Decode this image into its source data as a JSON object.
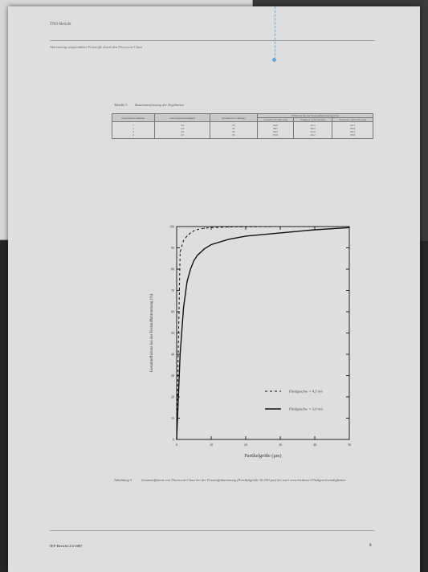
{
  "document": {
    "header_text": "TNO-Bericht",
    "header_subtitle": "Abtrennung ausgewählter Feststoffe durch den Fluorocut-Claus",
    "footer_left": "IFF-Bericht 2/2-2007",
    "page_number": "9"
  },
  "table": {
    "caption_label": "Tabelle 5",
    "caption_title": "Zusammenfassung der Ergebnisse",
    "headers": {
      "col1": "Experiment-nummer",
      "col2": "Glied-geschwindigkeit",
      "col3": "(maximaler Umfang)",
      "group": "Effizienz bei der Feststoffabtrennung (%)",
      "sub1": "Gesamt (30-250 µm)",
      "sub2": "Fraktion 1 (30-63 µm)",
      "sub3": "Fraktion 2 (63-250 µm)"
    },
    "rows": [
      [
        "1",
        "3,0",
        "95",
        "96,6",
        "94,5",
        "99,7"
      ],
      [
        "2",
        "3,0",
        "95",
        "98,7",
        "98,0",
        "99,8"
      ],
      [
        "3",
        "4,5",
        "95",
        "96,5",
        "95,6",
        "99,7"
      ],
      [
        "4",
        "4,5",
        "95",
        "95,6",
        "93,2",
        "99,8"
      ]
    ]
  },
  "chart_data": {
    "type": "line",
    "title": "",
    "xlabel": "Partikelgröße (µm)",
    "ylabel": "Gesamteffizienz bei der Feststoffabtrennung (%)",
    "xlim": [
      0,
      50
    ],
    "ylim": [
      0,
      100
    ],
    "x_ticks": [
      "0",
      "10",
      "20",
      "30",
      "40",
      "50"
    ],
    "y_ticks": [
      "0",
      "10",
      "20",
      "30",
      "40",
      "50",
      "60",
      "70",
      "80",
      "90",
      "100"
    ],
    "legend_position": "bottom-right",
    "series": [
      {
        "name": "Fließgeschw. = 4,5 m/s",
        "style": "dashed",
        "x": [
          0,
          1,
          2,
          3,
          4,
          5,
          6,
          8,
          10,
          15,
          20,
          30,
          40,
          50
        ],
        "y": [
          0,
          88,
          93.5,
          95.5,
          97,
          98,
          98.6,
          99.2,
          99.5,
          99.8,
          99.9,
          100,
          100,
          100
        ]
      },
      {
        "name": "Fließgeschw. = 3,0 m/s",
        "style": "solid",
        "x": [
          0,
          1,
          2,
          3,
          4,
          5,
          6,
          8,
          10,
          15,
          20,
          30,
          40,
          50
        ],
        "y": [
          0,
          40,
          62,
          74,
          80,
          84,
          86.5,
          89.5,
          91.5,
          94,
          95.5,
          97,
          98.5,
          99.5
        ]
      }
    ]
  },
  "figure": {
    "caption_label": "Abbildung 5",
    "caption_text": "Gesamteffizienz von Fluorocut-Claus bei der Feststoffabtrennung (Partikelgröße 30-250 µm) bei zwei verschiedenen Fließgeschwindigkeiten"
  }
}
